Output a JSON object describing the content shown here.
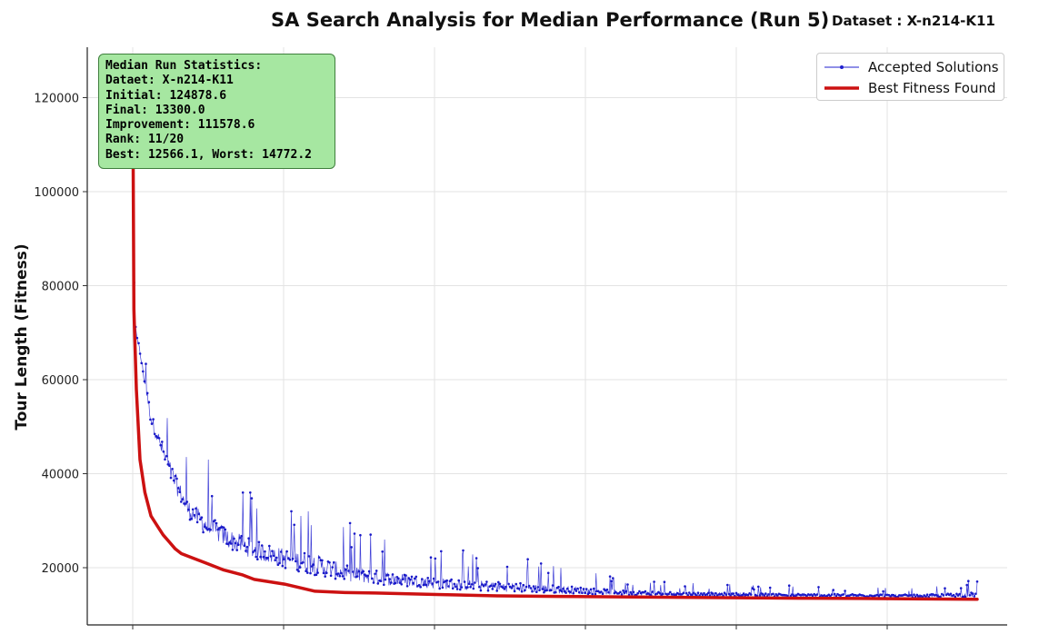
{
  "chart_data": {
    "type": "line",
    "title": "SA Search Analysis for Median Performance (Run 5)",
    "subtitle": "Dataset : X-n214-K11",
    "xlabel": "",
    "ylabel": "Tour Length (Fitness)",
    "xlim": [
      0,
      14000
    ],
    "ylim": [
      9000,
      131000
    ],
    "yticks": [
      20000,
      40000,
      60000,
      80000,
      100000,
      120000
    ],
    "ytick_labels": [
      "20000",
      "40000",
      "60000",
      "80000",
      "100000",
      "120000"
    ],
    "grid": true,
    "legend_position": "top-right",
    "colors": {
      "accepted": "#1f1fcf",
      "best": "#cc1111"
    },
    "series": [
      {
        "name": "Accepted Solutions",
        "style": "thin line with dot markers, highly oscillating",
        "envelope": {
          "x": [
            0,
            30,
            150,
            300,
            600,
            900,
            1200,
            1600,
            2000,
            2500,
            3000,
            3500,
            4000,
            5000,
            6000,
            7000,
            8000,
            9000,
            10000,
            11000,
            12000,
            13000,
            13900
          ],
          "low": [
            112000,
            72000,
            62000,
            50000,
            38000,
            30000,
            26000,
            23000,
            21000,
            19000,
            17500,
            16500,
            15800,
            15000,
            14500,
            14200,
            14000,
            13900,
            13800,
            13700,
            13650,
            13600,
            13600
          ],
          "high": [
            124878.6,
            74000,
            70000,
            60000,
            55000,
            45000,
            44000,
            40000,
            37000,
            36000,
            36000,
            30000,
            28000,
            24500,
            23000,
            21000,
            18000,
            17000,
            16500,
            16200,
            16000,
            15800,
            17500
          ]
        }
      },
      {
        "name": "Best Fitness Found",
        "x": [
          0,
          20,
          60,
          120,
          200,
          300,
          400,
          500,
          600,
          700,
          800,
          1000,
          1200,
          1500,
          1800,
          2000,
          2500,
          3000,
          3500,
          4000,
          5000,
          6000,
          7000,
          8000,
          9000,
          10000,
          11000,
          12000,
          13000,
          13900
        ],
        "values": [
          124878.6,
          75000,
          58000,
          43000,
          36000,
          31000,
          29000,
          27000,
          25500,
          24000,
          23000,
          22000,
          21000,
          19500,
          18500,
          17500,
          16500,
          15000,
          14700,
          14600,
          14300,
          14000,
          13900,
          13800,
          13700,
          13600,
          13500,
          13450,
          13350,
          13300
        ]
      }
    ]
  },
  "stats_box": {
    "lines": [
      "Median Run Statistics:",
      "Dataet: X-n214-K11",
      "Initial: 124878.6",
      "Final: 13300.0",
      "Improvement: 111578.6",
      "Rank: 11/20",
      "Best: 12566.1, Worst: 14772.2"
    ]
  }
}
